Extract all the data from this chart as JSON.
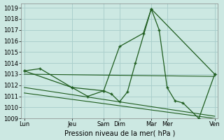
{
  "title": "Pression niveau de la mer( hPa )",
  "bg_color": "#cce8e2",
  "grid_color": "#aacfcc",
  "line_color": "#1e5c1e",
  "xtick_labels": [
    "Lun",
    "Jeu",
    "Sam",
    "Dim",
    "Mar",
    "Mer",
    "Ven"
  ],
  "xtick_positions": [
    0,
    3,
    5,
    6,
    8,
    9,
    12
  ],
  "xlim": [
    -0.2,
    12.2
  ],
  "ylim": [
    1009,
    1019.4
  ],
  "ytick_values": [
    1009,
    1010,
    1011,
    1012,
    1013,
    1014,
    1015,
    1016,
    1017,
    1018,
    1019
  ],
  "series1_x": [
    0,
    1,
    3,
    4,
    5,
    5.5,
    6,
    6.5,
    7,
    8,
    8.5,
    9,
    9.5,
    10,
    11,
    12
  ],
  "series1_y": [
    1013.3,
    1013.5,
    1011.8,
    1011.0,
    1011.5,
    1011.2,
    1010.5,
    1011.4,
    1014.0,
    1018.9,
    1017.0,
    1011.8,
    1010.6,
    1010.4,
    1009.0,
    1013.0
  ],
  "series2_x": [
    0,
    3,
    5,
    6,
    7.5,
    8,
    12
  ],
  "series2_y": [
    1013.3,
    1011.8,
    1011.5,
    1015.5,
    1016.7,
    1018.9,
    1013.0
  ],
  "trend1_x": [
    0,
    12
  ],
  "trend1_y": [
    1013.0,
    1012.8
  ],
  "trend2_x": [
    0,
    12
  ],
  "trend2_y": [
    1011.8,
    1009.2
  ],
  "trend3_x": [
    0,
    12
  ],
  "trend3_y": [
    1011.3,
    1009.0
  ]
}
